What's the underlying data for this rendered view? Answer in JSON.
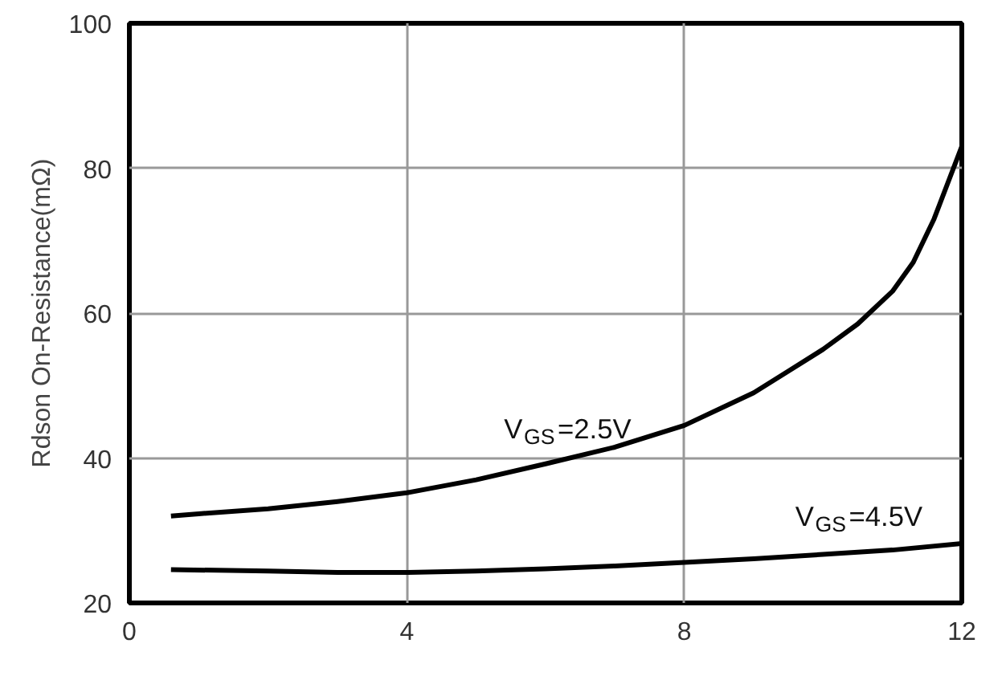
{
  "chart_data": {
    "type": "line",
    "ylabel": "Rdson On-Resistance(mΩ)",
    "xlim": [
      0,
      12
    ],
    "ylim": [
      20,
      100
    ],
    "xticks": [
      0,
      4,
      8,
      12
    ],
    "yticks": [
      20,
      40,
      60,
      80,
      100
    ],
    "grid": true,
    "line_style": "solid",
    "series": [
      {
        "color": "#000000",
        "x": [
          0.6,
          1,
          2,
          3,
          4,
          5,
          6,
          7,
          8,
          9,
          9.5,
          10,
          10.5,
          11,
          11.3,
          11.6,
          11.8,
          12
        ],
        "values": [
          32,
          32.3,
          33,
          34,
          35.2,
          37,
          39.2,
          41.5,
          44.5,
          49,
          52,
          55,
          58.5,
          63,
          67,
          73,
          78,
          83
        ]
      },
      {
        "color": "#000000",
        "x": [
          0.6,
          2,
          3,
          4,
          5,
          6,
          7,
          8,
          9,
          10,
          11,
          12
        ],
        "values": [
          24.6,
          24.4,
          24.2,
          24.2,
          24.4,
          24.7,
          25.1,
          25.6,
          26.1,
          26.7,
          27.3,
          28.2
        ]
      }
    ],
    "annotations": [
      "V$_{GS}$=2.5V",
      "V$_{GS}$=4.5V"
    ]
  }
}
